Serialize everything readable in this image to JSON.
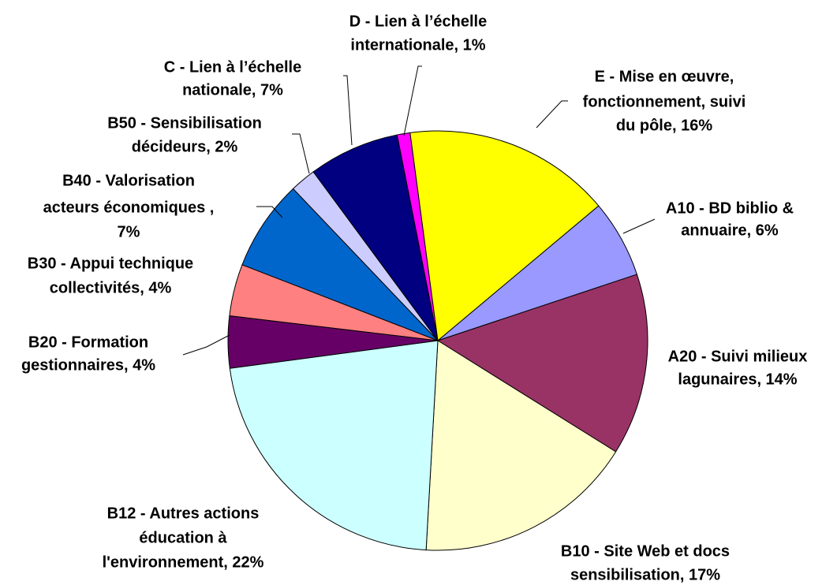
{
  "chart_data": {
    "type": "pie",
    "values": [
      6,
      14,
      17,
      22,
      4,
      4,
      7,
      2,
      7,
      1,
      16
    ],
    "value_labels": [
      [
        "A10 - BD biblio &",
        "annuaire, 6%"
      ],
      [
        "A20 - Suivi  milieux",
        "lagunaires, 14%"
      ],
      [
        "B10 - Site Web et docs",
        "sensibilisation, 17%"
      ],
      [
        "B12 - Autres actions",
        "éducation à",
        "l'environnement, 22%"
      ],
      [
        "B20 - Formation",
        "gestionnaires, 4%"
      ],
      [
        "B30 - Appui technique",
        "collectivités, 4%"
      ],
      [
        "B40 - Valorisation",
        "acteurs économiques ,",
        "7%"
      ],
      [
        "B50 - Sensibilisation",
        "décideurs, 2%"
      ],
      [
        "C - Lien à l’échelle",
        "nationale, 7%"
      ],
      [
        "D - Lien à l’échelle",
        "internationale, 1%"
      ],
      [
        "E - Mise en œuvre,",
        "fonctionnement, suivi",
        "du pôle, 16%"
      ]
    ],
    "colors": [
      "#9999ff",
      "#993366",
      "#ffffcc",
      "#ccffff",
      "#660066",
      "#ff8080",
      "#0066cc",
      "#ccccff",
      "#000080",
      "#ff00ff",
      "#ffff00"
    ]
  }
}
